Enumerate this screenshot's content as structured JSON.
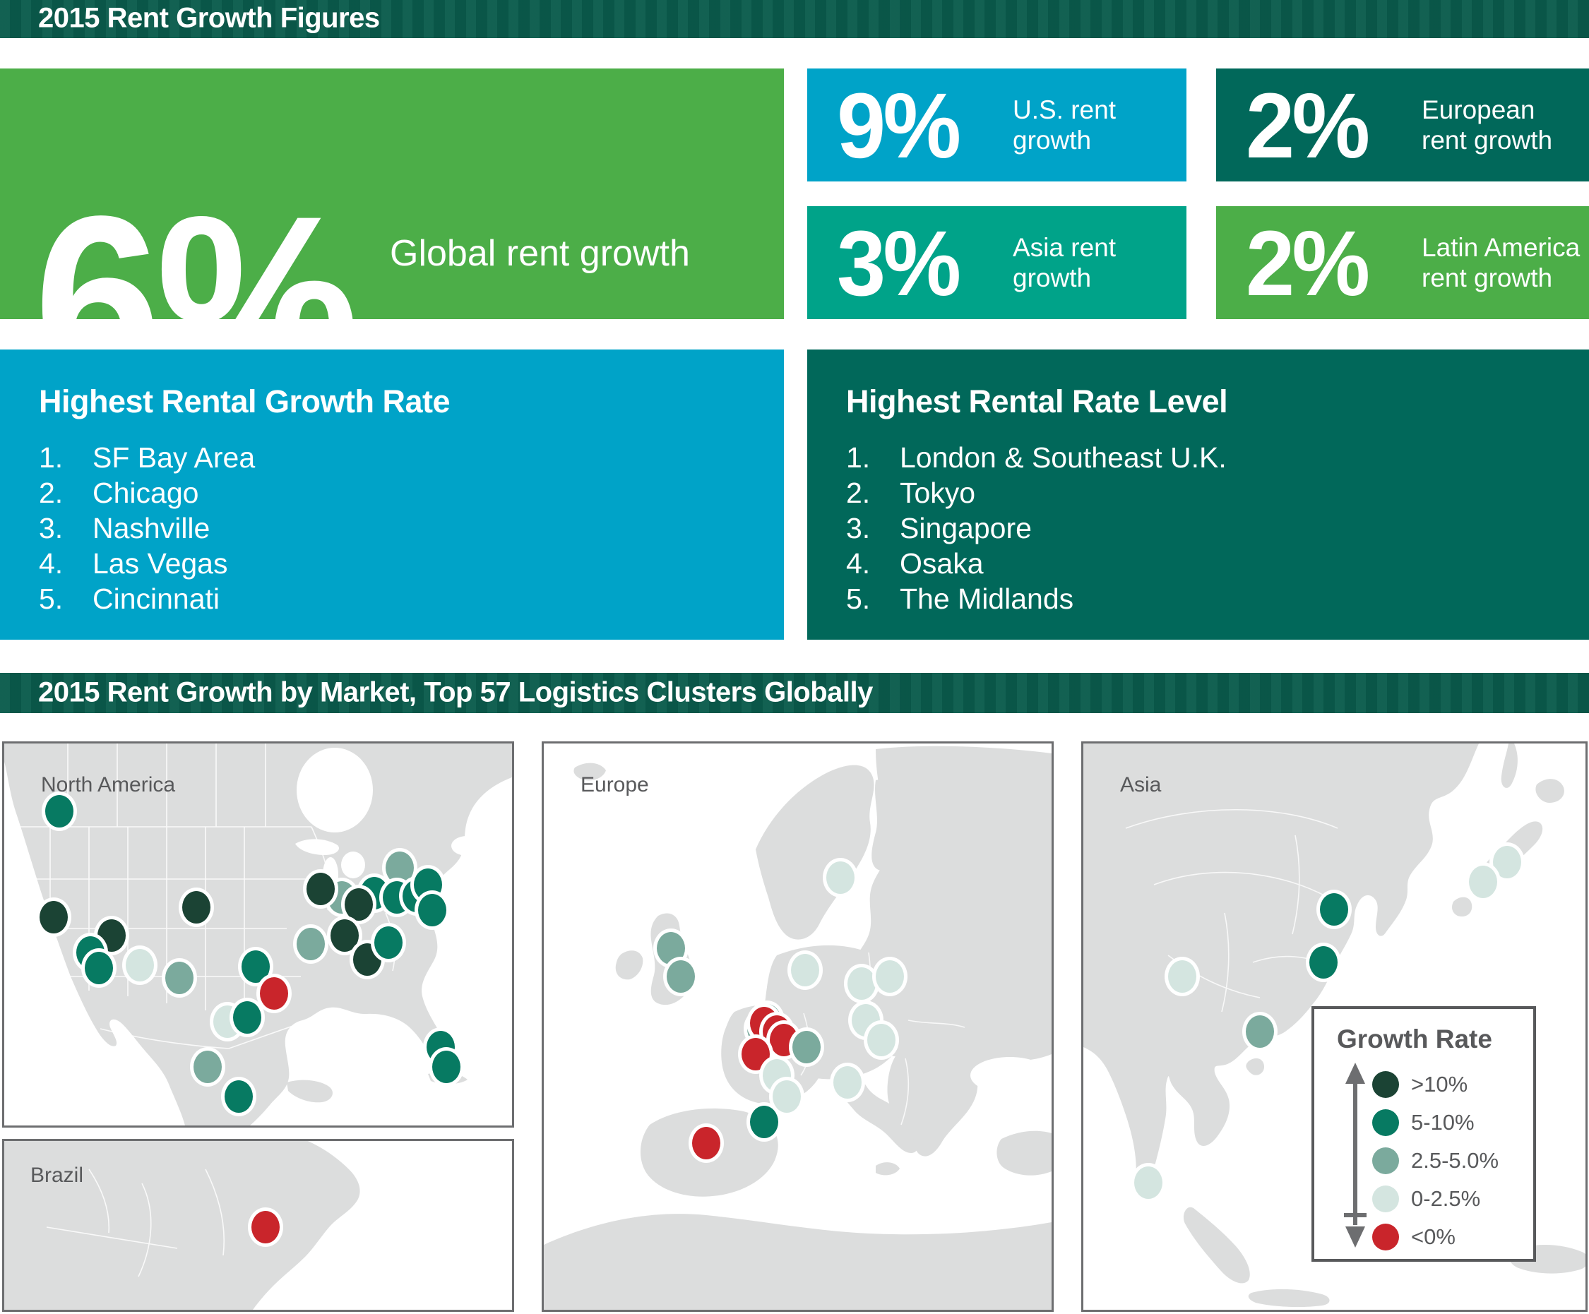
{
  "header": {
    "title": "2015 Rent Growth Figures"
  },
  "section2": {
    "title": "2015 Rent Growth by Market, Top 57 Logistics Clusters Globally"
  },
  "colors": {
    "green": "#4CAE48",
    "blue": "#00A3C8",
    "teal": "#00A389",
    "dark_teal": "#01685A",
    "bar_green": "#0A5B4C"
  },
  "stats": {
    "global": {
      "value": "6%",
      "label": "Global rent growth"
    },
    "us": {
      "value": "9%",
      "label": "U.S. rent growth",
      "line1": "U.S. rent",
      "line2": "growth"
    },
    "europe": {
      "value": "2%",
      "label": "European rent growth",
      "line1": "European",
      "line2": "rent growth"
    },
    "asia": {
      "value": "3%",
      "label": "Asia rent growth",
      "line1": "Asia rent",
      "line2": "growth"
    },
    "latam": {
      "value": "2%",
      "label": "Latin America rent growth",
      "line1": "Latin America",
      "line2": "rent growth"
    }
  },
  "rankings": {
    "growth_rate": {
      "title": "Highest Rental Growth Rate",
      "items": [
        {
          "n": "1.",
          "label": "SF Bay Area"
        },
        {
          "n": "2.",
          "label": "Chicago"
        },
        {
          "n": "3.",
          "label": "Nashville"
        },
        {
          "n": "4.",
          "label": "Las Vegas"
        },
        {
          "n": "5.",
          "label": "Cincinnati"
        }
      ]
    },
    "rate_level": {
      "title": "Highest Rental Rate Level",
      "items": [
        {
          "n": "1.",
          "label": "London & Southeast U.K."
        },
        {
          "n": "2.",
          "label": "Tokyo"
        },
        {
          "n": "3.",
          "label": "Singapore"
        },
        {
          "n": "4.",
          "label": "Osaka"
        },
        {
          "n": "5.",
          "label": "The Midlands"
        }
      ]
    }
  },
  "maps": {
    "legend": {
      "title": "Growth Rate",
      "items": [
        {
          "label": ">10%",
          "color": "#1B4334"
        },
        {
          "label": "5-10%",
          "color": "#077A62"
        },
        {
          "label": "2.5-5.0%",
          "color": "#7BAA9D"
        },
        {
          "label": "0-2.5%",
          "color": "#D4E5E0"
        },
        {
          "label": "<0%",
          "color": "#C9252B"
        }
      ]
    },
    "panels": [
      {
        "label": "North America",
        "markers": [
          {
            "x": 10.8,
            "y": 17.7,
            "cat": 1
          },
          {
            "x": 77.9,
            "y": 32.5,
            "cat": 2
          },
          {
            "x": 66.5,
            "y": 40.3,
            "cat": 2
          },
          {
            "x": 72.9,
            "y": 39.2,
            "cat": 1
          },
          {
            "x": 77.3,
            "y": 40.3,
            "cat": 1
          },
          {
            "x": 62.3,
            "y": 38.1,
            "cat": 0
          },
          {
            "x": 69.8,
            "y": 42.1,
            "cat": 0
          },
          {
            "x": 81.2,
            "y": 39.9,
            "cat": 1
          },
          {
            "x": 83.4,
            "y": 37.0,
            "cat": 1
          },
          {
            "x": 84.3,
            "y": 43.6,
            "cat": 1
          },
          {
            "x": 37.8,
            "y": 42.9,
            "cat": 0
          },
          {
            "x": 9.7,
            "y": 45.5,
            "cat": 0
          },
          {
            "x": 21.1,
            "y": 50.3,
            "cat": 0
          },
          {
            "x": 17.0,
            "y": 54.7,
            "cat": 1
          },
          {
            "x": 18.6,
            "y": 58.8,
            "cat": 1
          },
          {
            "x": 26.7,
            "y": 58.0,
            "cat": 3
          },
          {
            "x": 34.5,
            "y": 61.4,
            "cat": 2
          },
          {
            "x": 49.5,
            "y": 58.4,
            "cat": 1
          },
          {
            "x": 53.1,
            "y": 65.4,
            "cat": 4
          },
          {
            "x": 43.9,
            "y": 72.8,
            "cat": 3
          },
          {
            "x": 47.8,
            "y": 71.7,
            "cat": 1
          },
          {
            "x": 60.4,
            "y": 52.5,
            "cat": 2
          },
          {
            "x": 67.0,
            "y": 50.3,
            "cat": 0
          },
          {
            "x": 71.5,
            "y": 56.6,
            "cat": 0
          },
          {
            "x": 75.7,
            "y": 52.1,
            "cat": 1
          },
          {
            "x": 86.0,
            "y": 79.5,
            "cat": 1
          },
          {
            "x": 87.1,
            "y": 84.7,
            "cat": 1
          },
          {
            "x": 40.1,
            "y": 84.7,
            "cat": 2
          },
          {
            "x": 46.2,
            "y": 92.4,
            "cat": 1
          }
        ]
      },
      {
        "label": "Europe",
        "markers": [
          {
            "x": 58.4,
            "y": 23.7,
            "cat": 3
          },
          {
            "x": 25.0,
            "y": 36.2,
            "cat": 2
          },
          {
            "x": 27.0,
            "y": 41.1,
            "cat": 2
          },
          {
            "x": 51.5,
            "y": 40.0,
            "cat": 3
          },
          {
            "x": 43.9,
            "y": 48.9,
            "cat": 2
          },
          {
            "x": 42.8,
            "y": 50.4,
            "cat": 2
          },
          {
            "x": 43.4,
            "y": 49.4,
            "cat": 4
          },
          {
            "x": 45.9,
            "y": 50.9,
            "cat": 4
          },
          {
            "x": 47.3,
            "y": 52.4,
            "cat": 4
          },
          {
            "x": 62.6,
            "y": 42.4,
            "cat": 3
          },
          {
            "x": 68.2,
            "y": 41.1,
            "cat": 3
          },
          {
            "x": 63.4,
            "y": 48.9,
            "cat": 3
          },
          {
            "x": 66.5,
            "y": 52.4,
            "cat": 3
          },
          {
            "x": 51.7,
            "y": 53.6,
            "cat": 2
          },
          {
            "x": 41.7,
            "y": 54.9,
            "cat": 4
          },
          {
            "x": 45.9,
            "y": 58.6,
            "cat": 3
          },
          {
            "x": 59.8,
            "y": 59.9,
            "cat": 3
          },
          {
            "x": 47.8,
            "y": 62.3,
            "cat": 3
          },
          {
            "x": 43.4,
            "y": 66.8,
            "cat": 1
          },
          {
            "x": 32.0,
            "y": 70.6,
            "cat": 4
          }
        ]
      },
      {
        "label": "Asia",
        "markers": [
          {
            "x": 49.9,
            "y": 29.3,
            "cat": 1
          },
          {
            "x": 84.4,
            "y": 20.9,
            "cat": 3
          },
          {
            "x": 79.6,
            "y": 24.4,
            "cat": 3
          },
          {
            "x": 19.7,
            "y": 41.1,
            "cat": 3
          },
          {
            "x": 47.8,
            "y": 38.7,
            "cat": 1
          },
          {
            "x": 35.2,
            "y": 50.9,
            "cat": 2
          },
          {
            "x": 12.9,
            "y": 77.6,
            "cat": 3
          }
        ]
      },
      {
        "label": "Brazil",
        "markers": [
          {
            "x": 51.5,
            "y": 51.0,
            "cat": 4
          }
        ]
      }
    ]
  },
  "chart_data": [
    {
      "type": "bar",
      "title": "2015 Rent Growth Figures",
      "categories": [
        "Global",
        "U.S.",
        "Asia",
        "European",
        "Latin America"
      ],
      "values": [
        6,
        9,
        3,
        2,
        2
      ],
      "unit": "%"
    },
    {
      "type": "table",
      "title": "Highest Rental Growth Rate",
      "values": [
        "SF Bay Area",
        "Chicago",
        "Nashville",
        "Las Vegas",
        "Cincinnati"
      ]
    },
    {
      "type": "table",
      "title": "Highest Rental Rate Level",
      "values": [
        "London & Southeast U.K.",
        "Tokyo",
        "Singapore",
        "Osaka",
        "The Midlands"
      ]
    },
    {
      "type": "scatter",
      "title": "2015 Rent Growth by Market, Top 57 Logistics Clusters Globally",
      "legend_title": "Growth Rate",
      "bins": [
        ">10%",
        "5-10%",
        "2.5-5.0%",
        "0-2.5%",
        "<0%"
      ],
      "panels": [
        "North America",
        "Europe",
        "Asia",
        "Brazil"
      ],
      "marker_counts": {
        "North America": 29,
        "Europe": 20,
        "Asia": 7,
        "Brazil": 1
      },
      "total_markers": 57
    }
  ]
}
